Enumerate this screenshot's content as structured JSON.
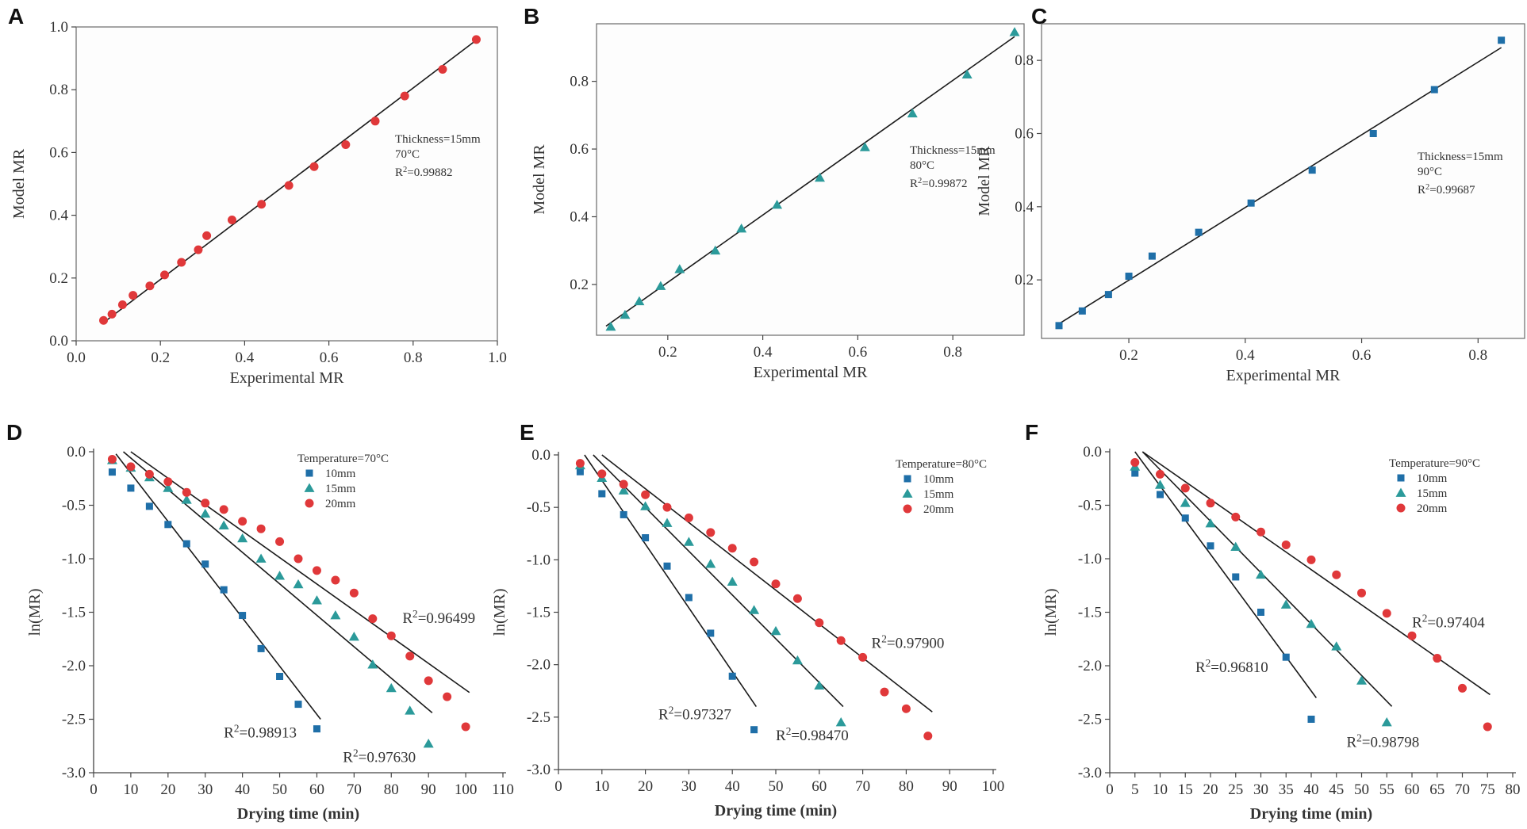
{
  "colors": {
    "red": "#e0383a",
    "teal": "#2b9a9a",
    "blue": "#1f6fa8",
    "line": "#1a1a1a"
  },
  "chart_data": [
    {
      "id": "A",
      "letter": "A",
      "type": "scatter",
      "xlabel": "Experimental MR",
      "ylabel": "Model MR",
      "xlim": [
        0.0,
        1.0
      ],
      "ylim": [
        0.0,
        1.0
      ],
      "xticks": [
        0.0,
        0.2,
        0.4,
        0.6,
        0.8,
        1.0
      ],
      "xtick_labels": [
        "0.0",
        "0.2",
        "0.4",
        "0.6",
        "0.8",
        "1.0"
      ],
      "yticks": [
        0.0,
        0.2,
        0.4,
        0.6,
        0.8,
        1.0
      ],
      "ytick_labels": [
        "0.0",
        "0.2",
        "0.4",
        "0.6",
        "0.8",
        "1.0"
      ],
      "annotation": {
        "thickness": "Thickness=15mm",
        "temperature": "70°C",
        "r2_prefix": "R",
        "r2_sup": "2",
        "r2_value": "=0.99882"
      },
      "series": [
        {
          "name": "MR",
          "marker": "circle",
          "color": "#e0383a",
          "x": [
            0.065,
            0.085,
            0.11,
            0.135,
            0.175,
            0.21,
            0.25,
            0.29,
            0.31,
            0.37,
            0.44,
            0.505,
            0.565,
            0.64,
            0.71,
            0.78,
            0.87,
            0.95
          ],
          "y": [
            0.065,
            0.085,
            0.115,
            0.145,
            0.175,
            0.21,
            0.25,
            0.29,
            0.335,
            0.385,
            0.435,
            0.495,
            0.555,
            0.625,
            0.7,
            0.78,
            0.865,
            0.96
          ]
        }
      ],
      "fit_lines": [
        {
          "x": [
            0.065,
            0.95
          ],
          "y": [
            0.058,
            0.958
          ]
        }
      ]
    },
    {
      "id": "B",
      "letter": "B",
      "type": "scatter",
      "xlabel": "Experimental MR",
      "ylabel": "Model MR",
      "xlim": [
        0.05,
        0.95
      ],
      "ylim": [
        0.05,
        0.97
      ],
      "xticks": [
        0.2,
        0.4,
        0.6,
        0.8
      ],
      "xtick_labels": [
        "0.2",
        "0.4",
        "0.6",
        "0.8"
      ],
      "yticks": [
        0.2,
        0.4,
        0.6,
        0.8
      ],
      "ytick_labels": [
        "0.2",
        "0.4",
        "0.6",
        "0.8"
      ],
      "annotation": {
        "thickness": "Thickness=15mm",
        "temperature": "80°C",
        "r2_prefix": "R",
        "r2_sup": "2",
        "r2_value": "=0.99872"
      },
      "series": [
        {
          "name": "MR",
          "marker": "triangle",
          "color": "#2b9a9a",
          "x": [
            0.08,
            0.11,
            0.14,
            0.185,
            0.225,
            0.3,
            0.355,
            0.43,
            0.52,
            0.615,
            0.715,
            0.83,
            0.93
          ],
          "y": [
            0.075,
            0.11,
            0.15,
            0.195,
            0.245,
            0.3,
            0.365,
            0.435,
            0.515,
            0.605,
            0.705,
            0.82,
            0.945
          ]
        }
      ],
      "fit_lines": [
        {
          "x": [
            0.07,
            0.93
          ],
          "y": [
            0.077,
            0.932
          ]
        }
      ]
    },
    {
      "id": "C",
      "letter": "C",
      "type": "scatter",
      "xlabel": "Experimental MR",
      "ylabel": "Model MR",
      "xlim": [
        0.05,
        0.88
      ],
      "ylim": [
        0.04,
        0.9
      ],
      "xticks": [
        0.2,
        0.4,
        0.6,
        0.8
      ],
      "xtick_labels": [
        "0.2",
        "0.4",
        "0.6",
        "0.8"
      ],
      "yticks": [
        0.2,
        0.4,
        0.6,
        0.8
      ],
      "ytick_labels": [
        "0.2",
        "0.4",
        "0.6",
        "0.8"
      ],
      "annotation": {
        "thickness": "Thickness=15mm",
        "temperature": "90°C",
        "r2_prefix": "R",
        "r2_sup": "2",
        "r2_value": "=0.99687"
      },
      "series": [
        {
          "name": "MR",
          "marker": "square",
          "color": "#1f6fa8",
          "x": [
            0.08,
            0.12,
            0.165,
            0.2,
            0.24,
            0.32,
            0.41,
            0.515,
            0.62,
            0.725,
            0.84
          ],
          "y": [
            0.075,
            0.115,
            0.16,
            0.21,
            0.265,
            0.33,
            0.41,
            0.5,
            0.6,
            0.72,
            0.855
          ]
        }
      ],
      "fit_lines": [
        {
          "x": [
            0.08,
            0.84
          ],
          "y": [
            0.08,
            0.835
          ]
        }
      ]
    },
    {
      "id": "D",
      "letter": "D",
      "type": "scatter",
      "xlabel": "Drying time (min)",
      "ylabel": "ln(MR)",
      "xlim": [
        0,
        110
      ],
      "ylim": [
        -3.0,
        0.0
      ],
      "xticks": [
        0,
        10,
        20,
        30,
        40,
        50,
        60,
        70,
        80,
        90,
        100,
        110
      ],
      "xtick_labels": [
        "0",
        "10",
        "20",
        "30",
        "40",
        "50",
        "60",
        "70",
        "80",
        "90",
        "100",
        "110"
      ],
      "yticks": [
        0.0,
        -0.5,
        -1.0,
        -1.5,
        -2.0,
        -2.5,
        -3.0
      ],
      "ytick_labels": [
        "0.0",
        "-0.5",
        "-1.0",
        "-1.5",
        "-2.0",
        "-2.5",
        "-3.0"
      ],
      "legend": {
        "title": "Temperature=70°C",
        "position": "top-right"
      },
      "series": [
        {
          "name": "10mm",
          "marker": "square",
          "color": "#1f6fa8",
          "x": [
            5,
            10,
            15,
            20,
            25,
            30,
            35,
            40,
            45,
            50,
            55,
            60
          ],
          "y": [
            -0.19,
            -0.34,
            -0.51,
            -0.68,
            -0.86,
            -1.05,
            -1.29,
            -1.53,
            -1.84,
            -2.1,
            -2.36,
            -2.59
          ]
        },
        {
          "name": "15mm",
          "marker": "triangle",
          "color": "#2b9a9a",
          "x": [
            5,
            10,
            15,
            20,
            25,
            30,
            35,
            40,
            45,
            50,
            55,
            60,
            65,
            70,
            75,
            80,
            85,
            90
          ],
          "y": [
            -0.08,
            -0.15,
            -0.24,
            -0.34,
            -0.45,
            -0.58,
            -0.69,
            -0.81,
            -1.0,
            -1.16,
            -1.24,
            -1.39,
            -1.53,
            -1.73,
            -1.99,
            -2.21,
            -2.42,
            -2.73
          ]
        },
        {
          "name": "20mm",
          "marker": "circle",
          "color": "#e0383a",
          "x": [
            5,
            10,
            15,
            20,
            25,
            30,
            35,
            40,
            45,
            50,
            55,
            60,
            65,
            70,
            75,
            80,
            85,
            90,
            95,
            100
          ],
          "y": [
            -0.07,
            -0.14,
            -0.21,
            -0.28,
            -0.38,
            -0.48,
            -0.54,
            -0.65,
            -0.72,
            -0.84,
            -1.0,
            -1.11,
            -1.2,
            -1.32,
            -1.56,
            -1.72,
            -1.91,
            -2.14,
            -2.29,
            -2.57
          ]
        }
      ],
      "fit_lines": [
        {
          "x": [
            6,
            61
          ],
          "y": [
            -0.02,
            -2.5
          ]
        },
        {
          "x": [
            8,
            91
          ],
          "y": [
            0.0,
            -2.44
          ]
        },
        {
          "x": [
            10,
            101
          ],
          "y": [
            0.0,
            -2.25
          ]
        }
      ],
      "r2_labels": [
        {
          "prefix": "R",
          "sup": "2",
          "value": "=0.98913",
          "x": 35,
          "y": -2.67
        },
        {
          "prefix": "R",
          "sup": "2",
          "value": "=0.97630",
          "x": 67,
          "y": -2.9
        },
        {
          "prefix": "R",
          "sup": "2",
          "value": "=0.96499",
          "x": 83,
          "y": -1.6
        }
      ]
    },
    {
      "id": "E",
      "letter": "E",
      "type": "scatter",
      "xlabel": "Drying time (min)",
      "ylabel": "ln(MR)",
      "xlim": [
        0,
        100
      ],
      "ylim": [
        -3.0,
        0.0
      ],
      "xticks": [
        0,
        10,
        20,
        30,
        40,
        50,
        60,
        70,
        80,
        90,
        100
      ],
      "xtick_labels": [
        "0",
        "10",
        "20",
        "30",
        "40",
        "50",
        "60",
        "70",
        "80",
        "90",
        "100"
      ],
      "yticks": [
        0.0,
        -0.5,
        -1.0,
        -1.5,
        -2.0,
        -2.5,
        -3.0
      ],
      "ytick_labels": [
        "0.0",
        "-0.5",
        "-1.0",
        "-1.5",
        "-2.0",
        "-2.5",
        "-3.0"
      ],
      "legend": {
        "title": "Temperature=80°C",
        "position": "top-right"
      },
      "series": [
        {
          "name": "10mm",
          "marker": "square",
          "color": "#1f6fa8",
          "x": [
            5,
            10,
            15,
            20,
            25,
            30,
            35,
            40,
            45
          ],
          "y": [
            -0.16,
            -0.37,
            -0.57,
            -0.79,
            -1.06,
            -1.36,
            -1.7,
            -2.11,
            -2.62
          ]
        },
        {
          "name": "15mm",
          "marker": "triangle",
          "color": "#2b9a9a",
          "x": [
            5,
            10,
            15,
            20,
            25,
            30,
            35,
            40,
            45,
            50,
            55,
            60,
            65
          ],
          "y": [
            -0.1,
            -0.22,
            -0.34,
            -0.49,
            -0.65,
            -0.83,
            -1.04,
            -1.21,
            -1.48,
            -1.68,
            -1.96,
            -2.2,
            -2.55
          ]
        },
        {
          "name": "20mm",
          "marker": "circle",
          "color": "#e0383a",
          "x": [
            5,
            10,
            15,
            20,
            25,
            30,
            35,
            40,
            45,
            50,
            55,
            60,
            65,
            70,
            75,
            80,
            85
          ],
          "y": [
            -0.08,
            -0.18,
            -0.28,
            -0.38,
            -0.5,
            -0.6,
            -0.74,
            -0.89,
            -1.02,
            -1.23,
            -1.37,
            -1.6,
            -1.77,
            -1.93,
            -2.26,
            -2.42,
            -2.68
          ]
        }
      ],
      "fit_lines": [
        {
          "x": [
            6,
            45.5
          ],
          "y": [
            0.0,
            -2.4
          ]
        },
        {
          "x": [
            8,
            65.5
          ],
          "y": [
            0.0,
            -2.4
          ]
        },
        {
          "x": [
            10,
            86
          ],
          "y": [
            0.0,
            -2.45
          ]
        }
      ],
      "r2_labels": [
        {
          "prefix": "R",
          "sup": "2",
          "value": "=0.97327",
          "x": 23,
          "y": -2.52
        },
        {
          "prefix": "R",
          "sup": "2",
          "value": "=0.98470",
          "x": 50,
          "y": -2.72
        },
        {
          "prefix": "R",
          "sup": "2",
          "value": "=0.97900",
          "x": 72,
          "y": -1.84
        }
      ]
    },
    {
      "id": "F",
      "letter": "F",
      "type": "scatter",
      "xlabel": "Drying time (min)",
      "ylabel": "ln(MR)",
      "xlim": [
        0,
        80
      ],
      "ylim": [
        -3.0,
        0.0
      ],
      "xticks": [
        0,
        5,
        10,
        15,
        20,
        25,
        30,
        35,
        40,
        45,
        50,
        55,
        60,
        65,
        70,
        75,
        80
      ],
      "xtick_labels": [
        "0",
        "5",
        "10",
        "15",
        "20",
        "25",
        "30",
        "35",
        "40",
        "45",
        "50",
        "55",
        "60",
        "65",
        "70",
        "75",
        "80"
      ],
      "yticks": [
        0.0,
        -0.5,
        -1.0,
        -1.5,
        -2.0,
        -2.5,
        -3.0
      ],
      "ytick_labels": [
        "0.0",
        "-0.5",
        "-1.0",
        "-1.5",
        "-2.0",
        "-2.5",
        "-3.0"
      ],
      "legend": {
        "title": "Temperature=90°C",
        "position": "top-right"
      },
      "series": [
        {
          "name": "10mm",
          "marker": "square",
          "color": "#1f6fa8",
          "x": [
            5,
            10,
            15,
            20,
            25,
            30,
            35,
            40
          ],
          "y": [
            -0.2,
            -0.4,
            -0.62,
            -0.88,
            -1.17,
            -1.5,
            -1.92,
            -2.5
          ]
        },
        {
          "name": "15mm",
          "marker": "triangle",
          "color": "#2b9a9a",
          "x": [
            5,
            10,
            15,
            20,
            25,
            30,
            35,
            40,
            45,
            50,
            55
          ],
          "y": [
            -0.14,
            -0.31,
            -0.48,
            -0.67,
            -0.89,
            -1.15,
            -1.43,
            -1.61,
            -1.82,
            -2.14,
            -2.53
          ]
        },
        {
          "name": "20mm",
          "marker": "circle",
          "color": "#e0383a",
          "x": [
            5,
            10,
            15,
            20,
            25,
            30,
            35,
            40,
            45,
            50,
            55,
            60,
            65,
            70,
            75
          ],
          "y": [
            -0.1,
            -0.21,
            -0.34,
            -0.48,
            -0.61,
            -0.75,
            -0.87,
            -1.01,
            -1.15,
            -1.32,
            -1.51,
            -1.72,
            -1.93,
            -2.21,
            -2.57
          ]
        }
      ],
      "fit_lines": [
        {
          "x": [
            5,
            41
          ],
          "y": [
            0.0,
            -2.3
          ]
        },
        {
          "x": [
            6.5,
            56
          ],
          "y": [
            0.0,
            -2.38
          ]
        },
        {
          "x": [
            6.5,
            75.5
          ],
          "y": [
            0.0,
            -2.27
          ]
        }
      ],
      "r2_labels": [
        {
          "prefix": "R",
          "sup": "2",
          "value": "=0.96810",
          "x": 17,
          "y": -2.06
        },
        {
          "prefix": "R",
          "sup": "2",
          "value": "=0.98798",
          "x": 47,
          "y": -2.76
        },
        {
          "prefix": "R",
          "sup": "2",
          "value": "=0.97404",
          "x": 60,
          "y": -1.64
        }
      ]
    }
  ]
}
